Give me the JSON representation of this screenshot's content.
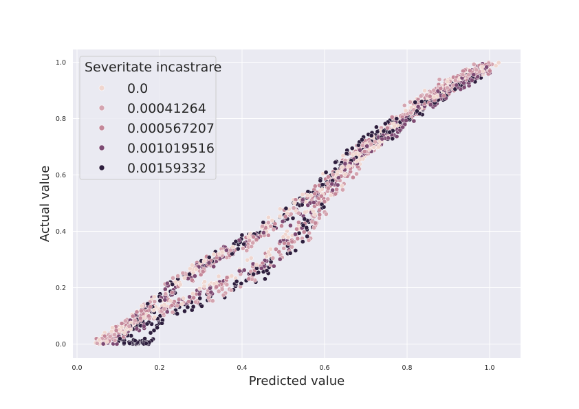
{
  "chart_data": {
    "type": "scatter",
    "title": "",
    "xlabel": "Predicted value",
    "ylabel": "Actual value",
    "xlim": [
      -0.01,
      1.075
    ],
    "ylim": [
      -0.05,
      1.045
    ],
    "x_ticks": [
      0.0,
      0.2,
      0.4,
      0.6,
      0.8,
      1.0
    ],
    "y_ticks": [
      0.0,
      0.2,
      0.4,
      0.6,
      0.8,
      1.0
    ],
    "x_tick_labels": [
      "0.0",
      "0.2",
      "0.4",
      "0.6",
      "0.8",
      "1.0"
    ],
    "y_tick_labels": [
      "0.0",
      "0.2",
      "0.4",
      "0.6",
      "0.8",
      "1.0"
    ],
    "grid": true,
    "background": "#eaeaf2",
    "legend": {
      "title": "Severitate incastrare",
      "placement": "top-left"
    },
    "series": [
      {
        "name": "0.0",
        "color": "#f0d6cf",
        "bands": [
          {
            "x": [
              0.04,
              0.12,
              0.22,
              0.32,
              0.45,
              0.58,
              0.68,
              0.75,
              0.82,
              0.92,
              1.02
            ],
            "y": [
              0.0,
              0.06,
              0.2,
              0.3,
              0.4,
              0.55,
              0.68,
              0.74,
              0.84,
              0.93,
              1.0
            ]
          },
          {
            "x": [
              0.05,
              0.14,
              0.25,
              0.4,
              0.55,
              0.65,
              0.72,
              0.8,
              0.9,
              1.0
            ],
            "y": [
              0.0,
              0.08,
              0.16,
              0.26,
              0.42,
              0.62,
              0.71,
              0.83,
              0.93,
              0.99
            ]
          }
        ]
      },
      {
        "name": "0.00041264",
        "color": "#d4a4b0",
        "bands": [
          {
            "x": [
              0.05,
              0.13,
              0.2,
              0.3,
              0.42,
              0.55,
              0.65,
              0.72,
              0.8,
              0.9,
              1.0
            ],
            "y": [
              0.0,
              0.07,
              0.18,
              0.28,
              0.36,
              0.5,
              0.64,
              0.72,
              0.82,
              0.92,
              0.99
            ]
          },
          {
            "x": [
              0.06,
              0.15,
              0.28,
              0.42,
              0.55,
              0.65,
              0.73,
              0.82,
              0.92,
              1.01
            ],
            "y": [
              0.0,
              0.09,
              0.14,
              0.24,
              0.38,
              0.6,
              0.72,
              0.85,
              0.95,
              1.0
            ]
          }
        ]
      },
      {
        "name": "0.000567207",
        "color": "#c48799",
        "bands": [
          {
            "x": [
              0.06,
              0.14,
              0.22,
              0.34,
              0.46,
              0.58,
              0.66,
              0.74,
              0.84,
              0.94,
              1.0
            ],
            "y": [
              0.01,
              0.08,
              0.19,
              0.31,
              0.4,
              0.54,
              0.66,
              0.74,
              0.85,
              0.94,
              0.99
            ]
          },
          {
            "x": [
              0.07,
              0.16,
              0.3,
              0.45,
              0.56,
              0.64,
              0.71,
              0.8,
              0.88,
              0.98
            ],
            "y": [
              0.0,
              0.11,
              0.17,
              0.28,
              0.44,
              0.58,
              0.7,
              0.82,
              0.9,
              0.98
            ]
          }
        ]
      },
      {
        "name": "0.001019516",
        "color": "#7d4a73",
        "bands": [
          {
            "x": [
              0.07,
              0.15,
              0.23,
              0.35,
              0.48,
              0.6,
              0.68,
              0.76,
              0.86,
              0.96,
              1.0
            ],
            "y": [
              0.01,
              0.09,
              0.2,
              0.32,
              0.42,
              0.56,
              0.68,
              0.75,
              0.86,
              0.95,
              0.99
            ]
          },
          {
            "x": [
              0.08,
              0.18,
              0.33,
              0.48,
              0.58,
              0.66,
              0.74,
              0.83,
              0.93,
              1.0
            ],
            "y": [
              0.0,
              0.1,
              0.2,
              0.3,
              0.5,
              0.64,
              0.73,
              0.84,
              0.92,
              0.98
            ]
          }
        ]
      },
      {
        "name": "0.00159332",
        "color": "#2d1e3e",
        "bands": [
          {
            "x": [
              0.1,
              0.16,
              0.24,
              0.36,
              0.5,
              0.6,
              0.7,
              0.78,
              0.88,
              0.98
            ],
            "y": [
              0.01,
              0.1,
              0.22,
              0.33,
              0.45,
              0.58,
              0.7,
              0.77,
              0.88,
              0.97
            ]
          },
          {
            "x": [
              0.12,
              0.16,
              0.2,
              0.3,
              0.45,
              0.55,
              0.62,
              0.7,
              0.8,
              0.9,
              0.98
            ],
            "y": [
              0.0,
              0.0,
              0.09,
              0.15,
              0.25,
              0.4,
              0.62,
              0.72,
              0.82,
              0.9,
              0.97
            ]
          }
        ]
      }
    ]
  }
}
